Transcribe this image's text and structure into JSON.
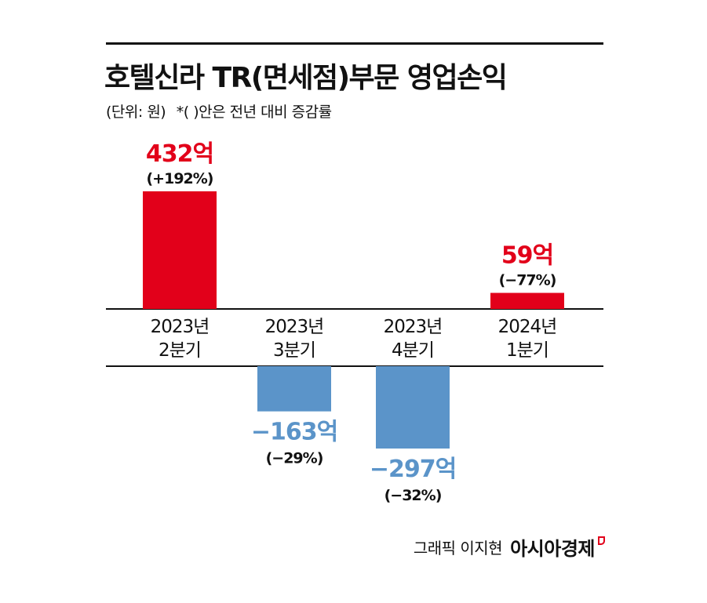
{
  "title": "호텔신라 TR(면세점)부문 영업손익",
  "subtitle": {
    "unit": "(단위: 원)",
    "note": "*(    )안은 전년 대비 증감률"
  },
  "colors": {
    "positive": "#e2001a",
    "negative": "#5b94c9",
    "positive_label": "#e2001a",
    "negative_label": "#5b94c9"
  },
  "chart_data": {
    "type": "bar",
    "title": "호텔신라 TR(면세점)부문 영업손익",
    "categories": [
      "2023년\n2분기",
      "2023년\n3분기",
      "2023년\n4분기",
      "2024년\n1분기"
    ],
    "values": [
      432,
      -163,
      -297,
      59
    ],
    "value_labels": [
      "432억",
      "−163억",
      "−297억",
      "59억"
    ],
    "change_labels": [
      "(+192%)",
      "(−29%)",
      "(−32%)",
      "(−77%)"
    ],
    "unit": "억 원",
    "ylim": [
      -300,
      432
    ],
    "grid": false,
    "legend": "none"
  },
  "credit": {
    "text": "그래픽 이지현",
    "brand": "아시아경제"
  }
}
